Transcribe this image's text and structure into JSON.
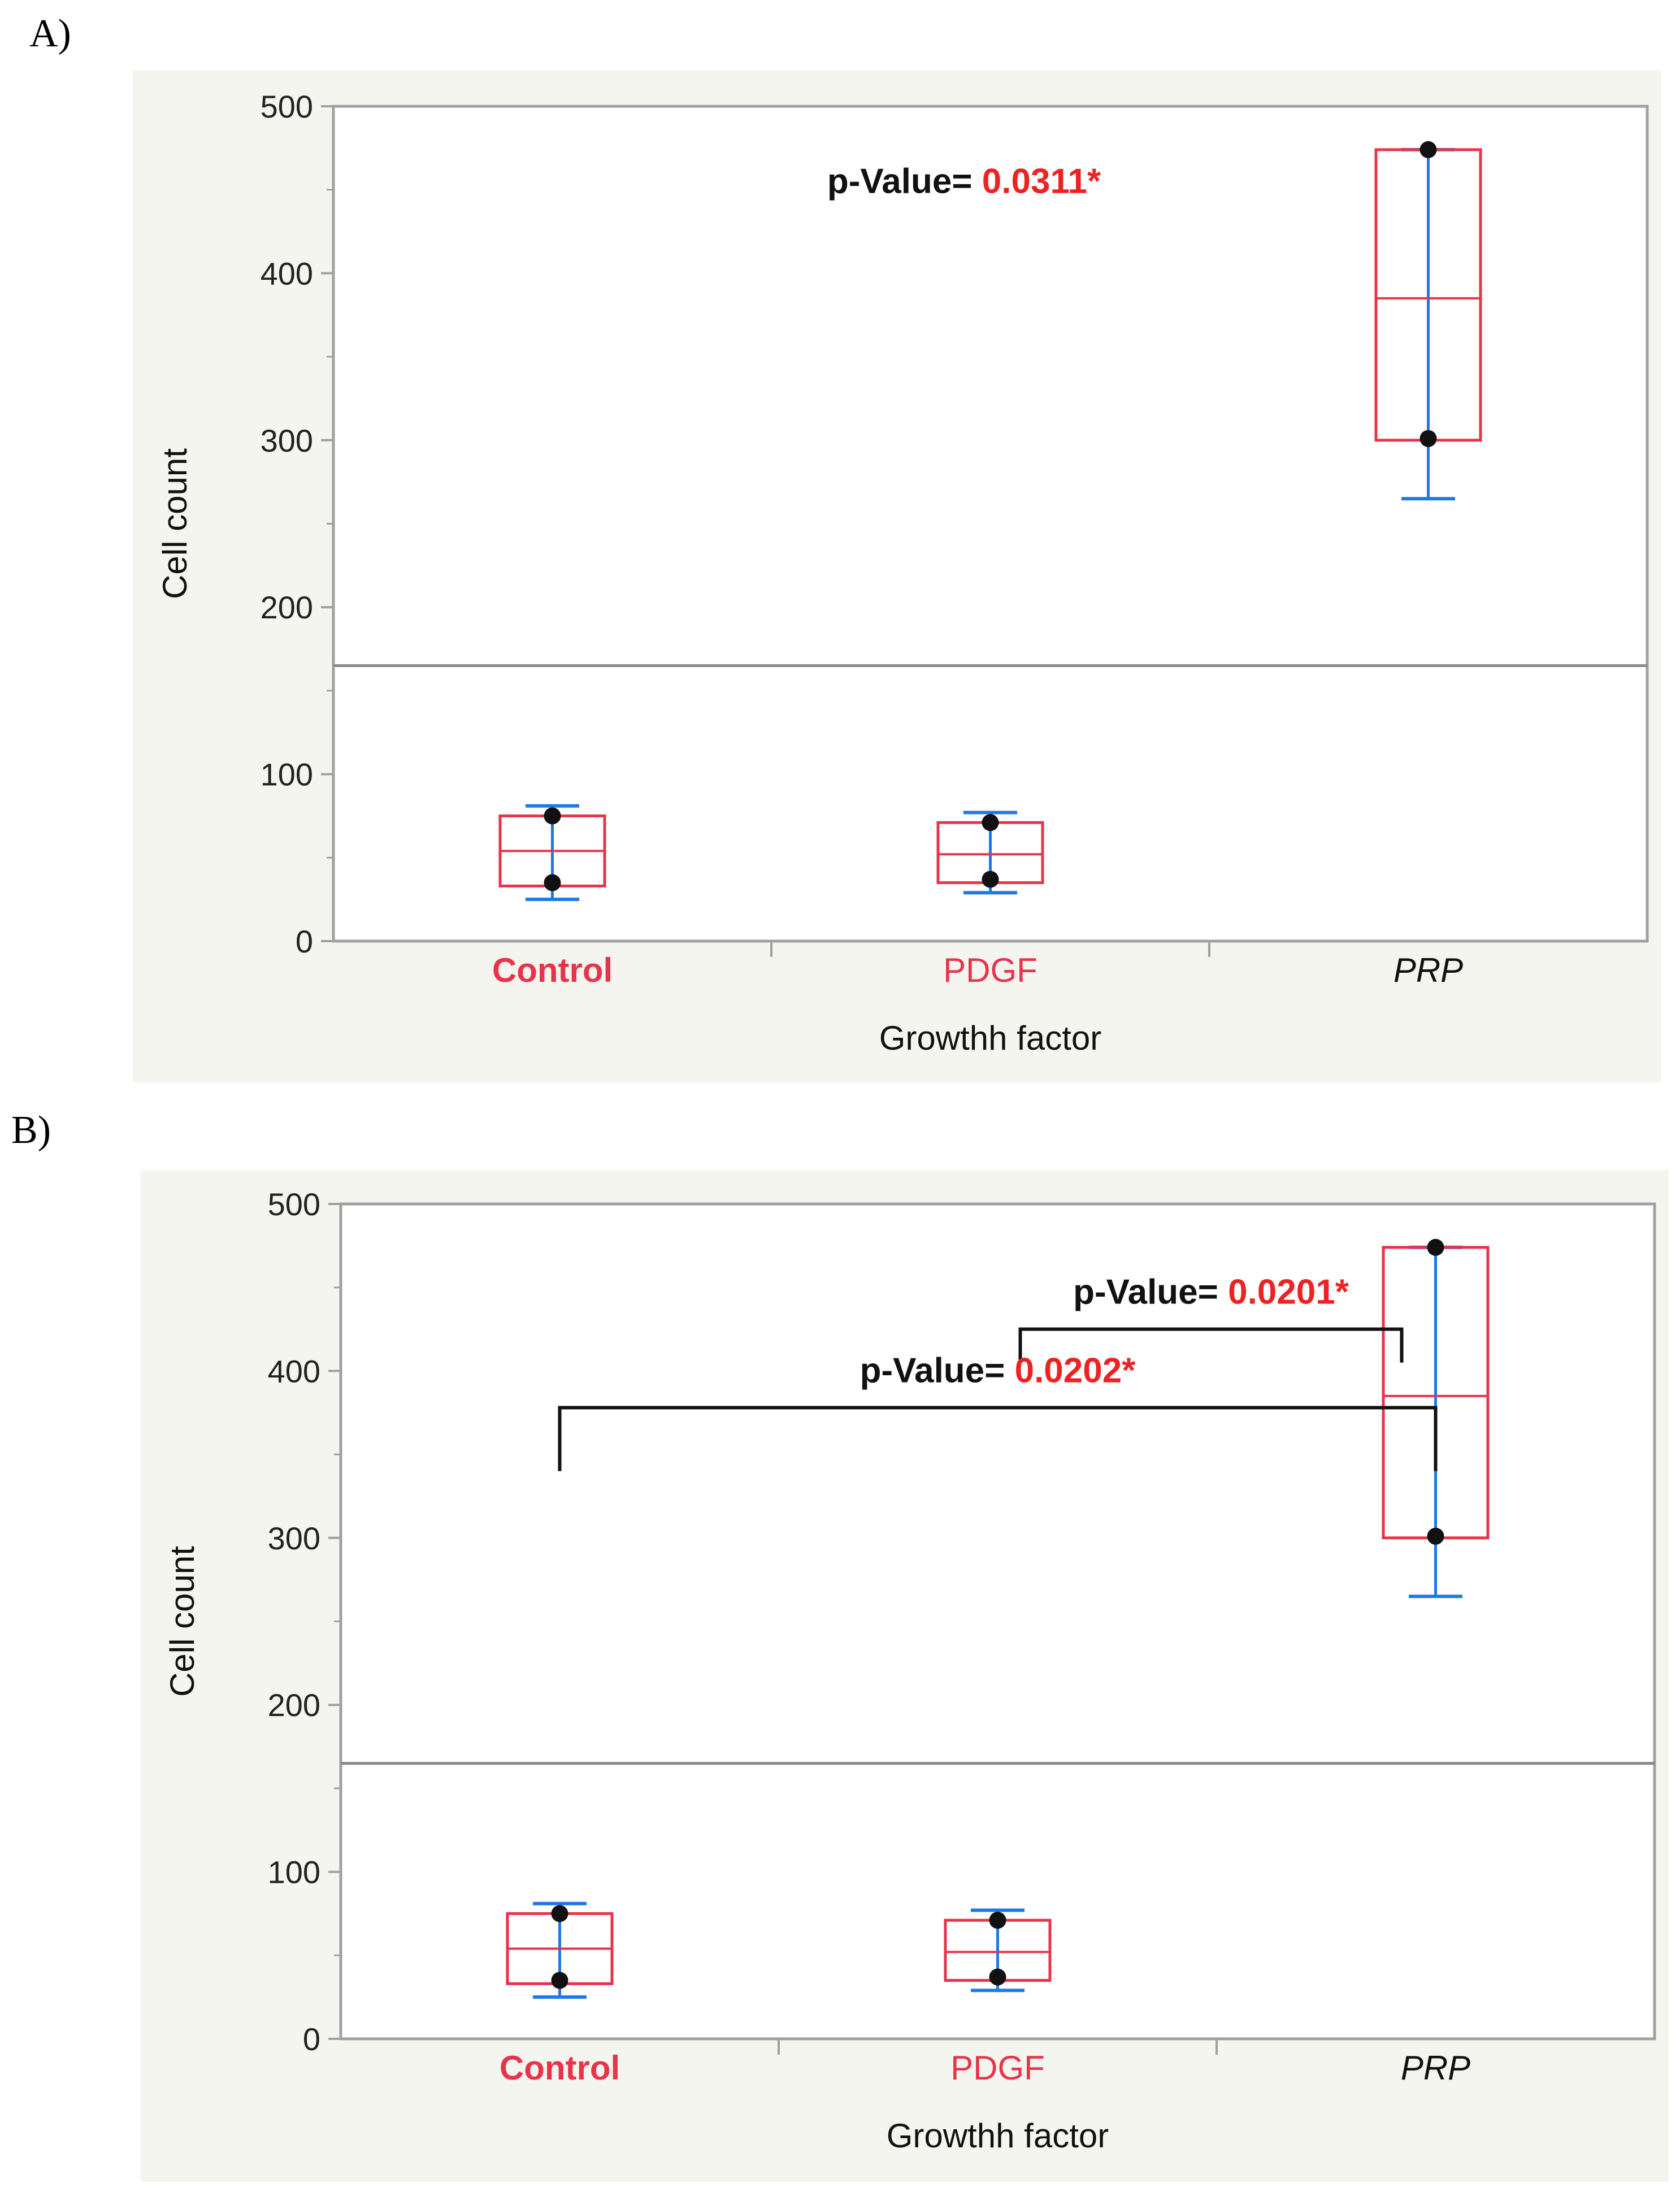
{
  "colors": {
    "panel_bg": "#f5f5f0",
    "plot_border": "#a0a0a0",
    "grand_mean": "#888888",
    "box": "#e8334a",
    "whisker": "#1f78e6",
    "point": "#111111",
    "pval_value": "#ee2222",
    "bracket": "#111111"
  },
  "chart_data": [
    {
      "panel_label": "A)",
      "type": "box",
      "xlabel": "Growthh factor",
      "ylabel": "Cell count",
      "ylim": [
        0,
        500
      ],
      "yticks": [
        0,
        100,
        200,
        300,
        400,
        500
      ],
      "grand_mean": 165,
      "categories": [
        {
          "name": "Control",
          "style": "bold-red",
          "min": 25,
          "q1": 33,
          "median": 54,
          "q3": 75,
          "max": 81,
          "points": [
            75,
            35
          ]
        },
        {
          "name": "PDGF",
          "style": "red",
          "min": 29,
          "q1": 35,
          "median": 52,
          "q3": 71,
          "max": 77,
          "points": [
            71,
            37
          ]
        },
        {
          "name": "PRP",
          "style": "italic",
          "min": 265,
          "q1": 300,
          "median": 385,
          "q3": 474,
          "max": 474,
          "points": [
            474,
            301
          ]
        }
      ],
      "annotations": [
        {
          "text": "p-Value=",
          "value": "0.0311*"
        }
      ]
    },
    {
      "panel_label": "B)",
      "type": "box",
      "xlabel": "Growthh factor",
      "ylabel": "Cell count",
      "ylim": [
        0,
        500
      ],
      "yticks": [
        0,
        100,
        200,
        300,
        400,
        500
      ],
      "grand_mean": 165,
      "categories": [
        {
          "name": "Control",
          "style": "bold-red",
          "min": 25,
          "q1": 33,
          "median": 54,
          "q3": 75,
          "max": 81,
          "points": [
            75,
            35
          ]
        },
        {
          "name": "PDGF",
          "style": "red",
          "min": 29,
          "q1": 35,
          "median": 52,
          "q3": 71,
          "max": 77,
          "points": [
            71,
            37
          ]
        },
        {
          "name": "PRP",
          "style": "italic",
          "min": 265,
          "q1": 300,
          "median": 385,
          "q3": 474,
          "max": 474,
          "points": [
            474,
            301
          ]
        }
      ],
      "annotations": [
        {
          "text": "p-Value=",
          "value": "0.0201*",
          "from": "PDGF",
          "to": "PRP",
          "level": 425,
          "from_end": 405,
          "to_end": 405
        },
        {
          "text": "p-Value=",
          "value": "0.0202*",
          "from": "Control",
          "to": "PRP",
          "level": 378,
          "from_end": 340,
          "to_end": 340
        }
      ]
    }
  ]
}
